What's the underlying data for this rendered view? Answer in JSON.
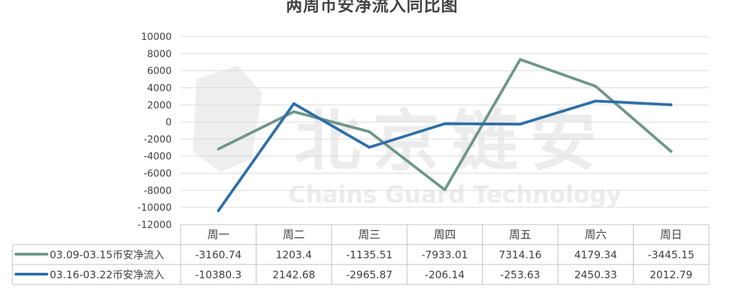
{
  "title": "两周币安净流入同比图",
  "watermark": {
    "cn": "北京链安",
    "en": "Chains Guard Technology"
  },
  "colors": {
    "series1": "#6e9688",
    "series2": "#2e6fa8",
    "grid": "#d9d9d9",
    "axis_text": "#404040",
    "watermark": "#ececec"
  },
  "chart_data": {
    "type": "line",
    "title": "两周币安净流入同比图",
    "categories": [
      "周一",
      "周二",
      "周三",
      "周四",
      "周五",
      "周六",
      "周日"
    ],
    "ylim": [
      -12000,
      10000
    ],
    "yticks": [
      10000,
      8000,
      6000,
      4000,
      2000,
      0,
      -2000,
      -4000,
      -6000,
      -8000,
      -10000,
      -12000
    ],
    "grid": true,
    "legend": "data-table-left",
    "series": [
      {
        "name": "03.09-03.15币安净流入",
        "values": [
          -3160.74,
          1203.4,
          -1135.51,
          -7933.01,
          7314.16,
          4179.34,
          -3445.15
        ],
        "labels": [
          "-3160.74",
          "1203.4",
          "-1135.51",
          "-7933.01",
          "7314.16",
          "4179.34",
          "-3445.15"
        ]
      },
      {
        "name": "03.16-03.22币安净流入",
        "values": [
          -10380.3,
          2142.68,
          -2965.87,
          -206.14,
          -253.63,
          2450.33,
          2012.79
        ],
        "labels": [
          "-10380.3",
          "2142.68",
          "-2965.87",
          "-206.14",
          "-253.63",
          "2450.33",
          "2012.79"
        ]
      }
    ]
  }
}
